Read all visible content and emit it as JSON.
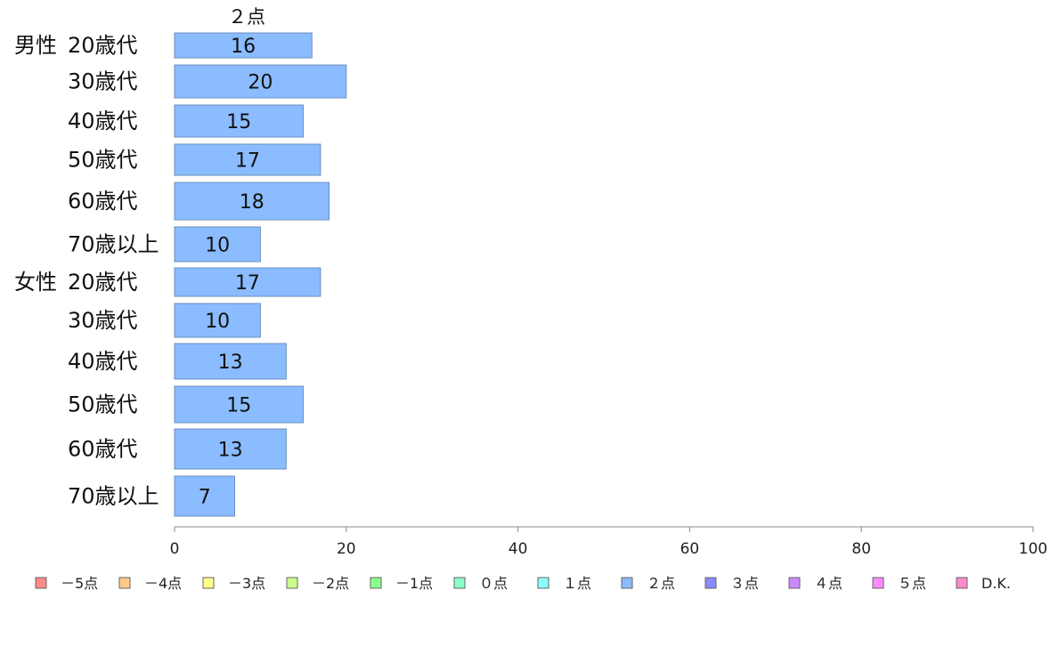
{
  "chart_data": {
    "type": "bar",
    "orientation": "horizontal",
    "stacked": true,
    "series_heading": "２点",
    "groups": [
      {
        "label": "男性",
        "categories": [
          "20歳代",
          "30歳代",
          "40歳代",
          "50歳代",
          "60歳代",
          "70歳以上"
        ]
      },
      {
        "label": "女性",
        "categories": [
          "20歳代",
          "30歳代",
          "40歳代",
          "50歳代",
          "60歳代",
          "70歳以上"
        ]
      }
    ],
    "series": [
      {
        "name": "２点",
        "color": "#8bbcff",
        "values": [
          16,
          20,
          15,
          17,
          18,
          10,
          17,
          10,
          13,
          15,
          13,
          7
        ]
      }
    ],
    "xlim": [
      0,
      100
    ],
    "xticks": [
      0,
      20,
      40,
      60,
      80,
      100
    ],
    "grid": false,
    "legend_position": "bottom",
    "legend": [
      {
        "label": "－5点",
        "color": "#ff8a8a"
      },
      {
        "label": "－4点",
        "color": "#ffc98a"
      },
      {
        "label": "－3点",
        "color": "#ffff8a"
      },
      {
        "label": "－2点",
        "color": "#c9ff8a"
      },
      {
        "label": "－1点",
        "color": "#8aff8a"
      },
      {
        "label": "０点",
        "color": "#8affc9"
      },
      {
        "label": "１点",
        "color": "#8affff"
      },
      {
        "label": "２点",
        "color": "#8bbcff"
      },
      {
        "label": "３点",
        "color": "#8a8aff"
      },
      {
        "label": "４点",
        "color": "#c98aff"
      },
      {
        "label": "５点",
        "color": "#ff8aff"
      },
      {
        "label": "D.K.",
        "color": "#ff8ac9"
      }
    ]
  }
}
